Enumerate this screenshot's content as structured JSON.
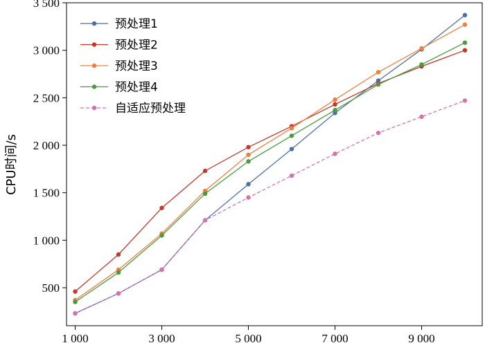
{
  "chart_data": {
    "type": "line",
    "ylabel": "CPU时间/s",
    "xlabel": "",
    "xlim": [
      800,
      10400
    ],
    "ylim": [
      100,
      3500
    ],
    "x": [
      1000,
      2000,
      3000,
      4000,
      5000,
      6000,
      7000,
      8000,
      9000,
      10000
    ],
    "x_ticks": [
      1000,
      3000,
      5000,
      7000,
      9000
    ],
    "x_tick_labels": [
      "1 000",
      "3 000",
      "5 000",
      "7 000",
      "9 000"
    ],
    "y_ticks": [
      500,
      1000,
      1500,
      2000,
      2500,
      3000,
      3500
    ],
    "y_tick_labels": [
      "500",
      "1 000",
      "1 500",
      "2 000",
      "2 500",
      "3 000",
      "3 500"
    ],
    "grid": false,
    "legend_position": "top-left",
    "series": [
      {
        "name": "预处理1",
        "color": "#4a6fa5",
        "dashed": false,
        "values": [
          230,
          440,
          690,
          1210,
          1590,
          1960,
          2340,
          2680,
          3010,
          3370
        ]
      },
      {
        "name": "预处理2",
        "color": "#c0392b",
        "dashed": false,
        "values": [
          460,
          850,
          1340,
          1730,
          1980,
          2200,
          2430,
          2650,
          2830,
          3000
        ]
      },
      {
        "name": "预处理3",
        "color": "#f07f3c",
        "dashed": false,
        "values": [
          370,
          690,
          1070,
          1520,
          1900,
          2180,
          2480,
          2770,
          3020,
          3270
        ]
      },
      {
        "name": "预处理4",
        "color": "#4a9a3f",
        "dashed": false,
        "values": [
          350,
          660,
          1050,
          1490,
          1830,
          2100,
          2370,
          2640,
          2850,
          3080
        ]
      },
      {
        "name": "自适应预处理",
        "color": "#d671b0",
        "dashed": true,
        "values": [
          230,
          440,
          690,
          1210,
          1450,
          1680,
          1910,
          2130,
          2300,
          2470
        ]
      }
    ]
  }
}
